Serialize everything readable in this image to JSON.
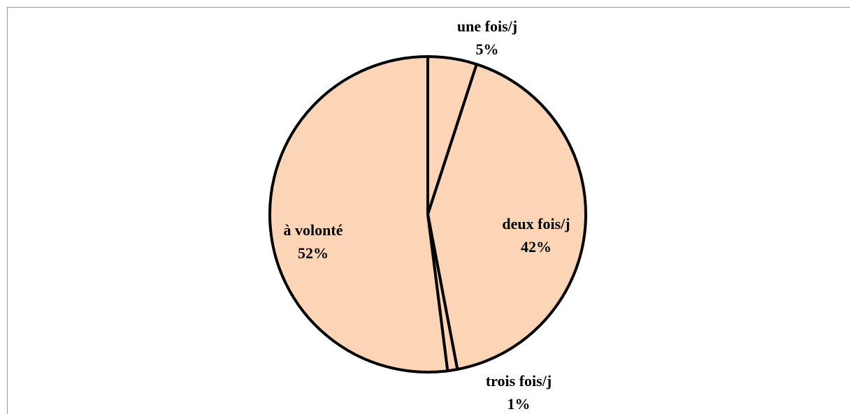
{
  "chart_data": {
    "type": "pie",
    "categories": [
      "une fois/j",
      "deux fois/j",
      "trois fois/j",
      "à volonté"
    ],
    "values": [
      5,
      42,
      1,
      52
    ],
    "value_labels": [
      "5%",
      "42%",
      "1%",
      "52%"
    ],
    "color": "#fbd5b5"
  }
}
